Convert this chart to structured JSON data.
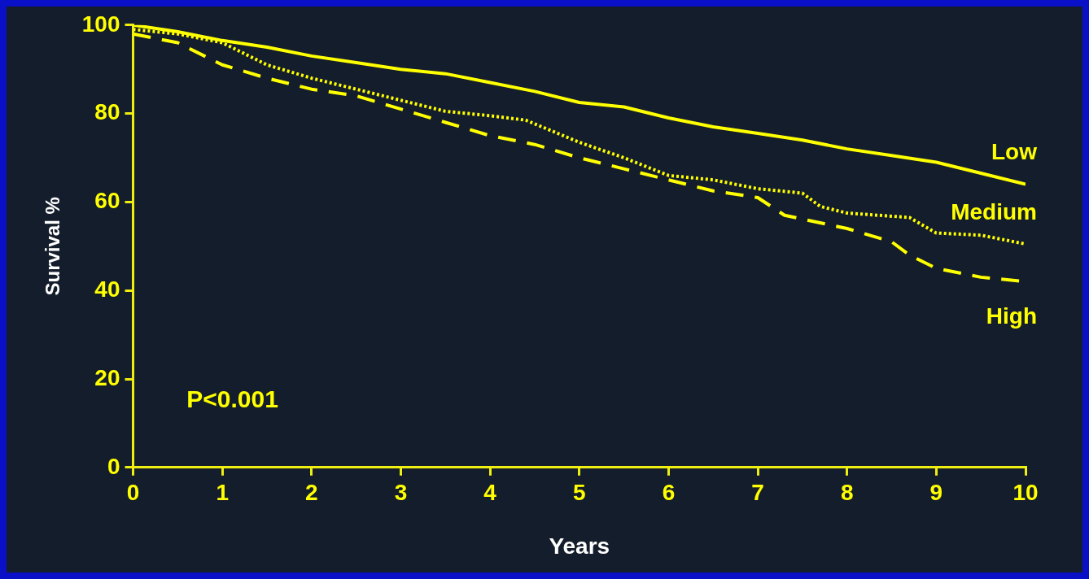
{
  "chart_data": {
    "type": "line",
    "xlabel": "Years",
    "ylabel": "Survival %",
    "annotations": [
      "P<0.001"
    ],
    "xlim": [
      0,
      10
    ],
    "xticks": [
      0,
      1,
      2,
      3,
      4,
      5,
      6,
      7,
      8,
      9,
      10
    ],
    "ylim": [
      0,
      100
    ],
    "yticks": [
      0,
      20,
      40,
      60,
      80,
      100
    ],
    "grid": false,
    "legend": false,
    "marker": "none",
    "series": [
      {
        "name": "Low",
        "color": "#ffff00",
        "line_style": "solid",
        "x": [
          0,
          0.5,
          1,
          1.5,
          2,
          2.5,
          3,
          3.5,
          4,
          4.5,
          5,
          5.5,
          6,
          6.5,
          7,
          7.5,
          8,
          8.5,
          9,
          9.5,
          10
        ],
        "values": [
          100,
          98.5,
          96.5,
          95,
          93,
          91.5,
          90,
          89,
          87,
          85,
          82.5,
          81.5,
          79,
          77,
          75.5,
          74,
          72,
          70.5,
          69,
          66.5,
          64
        ]
      },
      {
        "name": "Medium",
        "color": "#ffff00",
        "line_style": "dotted",
        "x": [
          0,
          0.5,
          1,
          1.5,
          2,
          2.5,
          3,
          3.5,
          4,
          4.4,
          5,
          5.5,
          6,
          6.5,
          7,
          7.5,
          7.7,
          8,
          8.7,
          9,
          9.5,
          10
        ],
        "values": [
          99,
          98,
          96,
          91,
          88,
          85.5,
          83,
          80.5,
          79.5,
          78.5,
          73.5,
          70,
          66,
          65,
          63,
          62,
          59,
          57.5,
          56.5,
          53,
          52.5,
          50.5
        ]
      },
      {
        "name": "High",
        "color": "#ffff00",
        "line_style": "dashed",
        "x": [
          0,
          0.5,
          0.8,
          1,
          1.5,
          2,
          2.5,
          3,
          3.5,
          4,
          4.5,
          5,
          5.5,
          6,
          6.5,
          7,
          7.3,
          8,
          8.5,
          8.7,
          9,
          9.5,
          10
        ],
        "values": [
          98,
          96,
          93,
          91,
          88,
          85.5,
          84,
          81,
          78,
          75,
          73,
          70,
          67.5,
          65,
          62.5,
          61,
          57,
          54,
          51,
          48,
          45,
          43,
          42
        ]
      }
    ]
  }
}
